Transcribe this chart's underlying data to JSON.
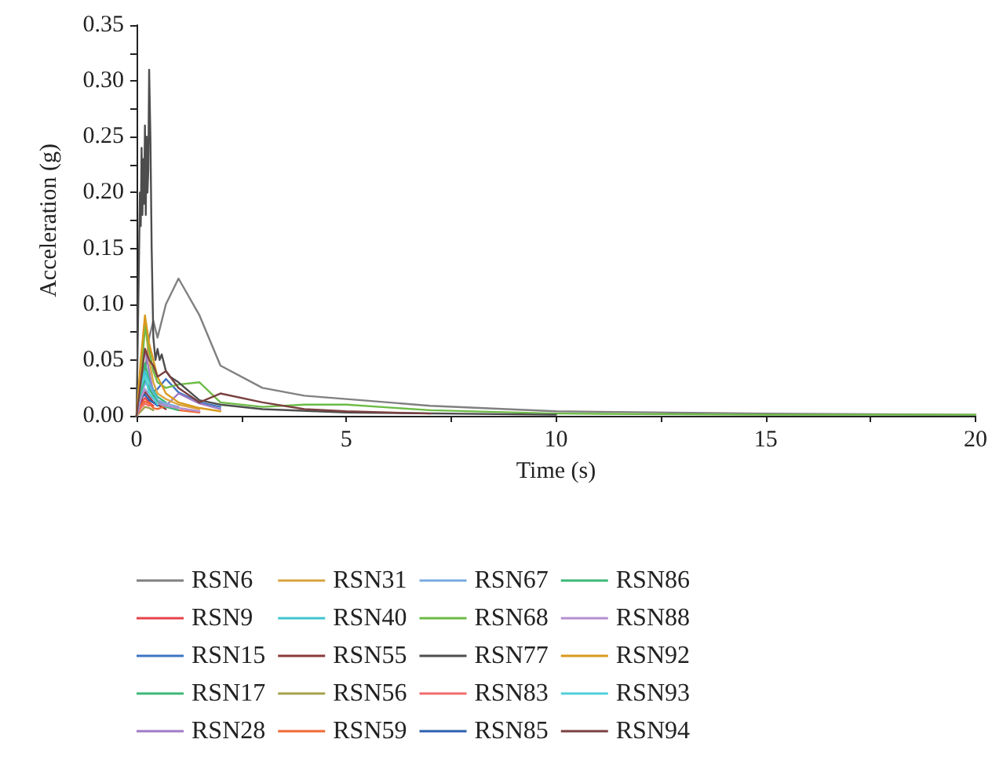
{
  "chart_data": {
    "type": "line",
    "xlabel": "Time (s)",
    "ylabel": "Acceleration (g)",
    "x": [
      0,
      0.1,
      0.2,
      0.3,
      0.4,
      0.5,
      0.7,
      1,
      1.5,
      2,
      3,
      4,
      5,
      7,
      10,
      15,
      20
    ],
    "xlim": [
      0,
      20
    ],
    "xticks": [
      0,
      {
        "value": 2.5,
        "label": null
      },
      5,
      {
        "value": 7.5,
        "label": null
      },
      10,
      {
        "value": 12.5,
        "label": null
      },
      15,
      {
        "value": 17.5,
        "label": null
      },
      20
    ],
    "ylim": [
      0,
      0.35
    ],
    "yticks": [
      {
        "value": 0,
        "label": "0.00"
      },
      {
        "value": 0.025,
        "label": null
      },
      {
        "value": 0.05,
        "label": "0.05"
      },
      {
        "value": 0.075,
        "label": null
      },
      {
        "value": 0.1,
        "label": "0.10"
      },
      {
        "value": 0.125,
        "label": null
      },
      {
        "value": 0.15,
        "label": "0.15"
      },
      {
        "value": 0.175,
        "label": null
      },
      {
        "value": 0.2,
        "label": "0.20"
      },
      {
        "value": 0.225,
        "label": null
      },
      {
        "value": 0.25,
        "label": "0.25"
      },
      {
        "value": 0.275,
        "label": null
      },
      {
        "value": 0.3,
        "label": "0.30"
      },
      {
        "value": 0.325,
        "label": null
      },
      {
        "value": 0.35,
        "label": "0.35"
      }
    ],
    "grid": false,
    "legend": "bottom",
    "marker": "none",
    "line_style": "solid",
    "series": [
      {
        "name": "RSN6",
        "color": "#808080",
        "values": [
          0,
          0.01,
          0.04,
          0.07,
          0.085,
          0.07,
          0.1,
          0.123,
          0.09,
          0.045,
          0.025,
          0.018,
          0.015,
          0.009,
          0.004,
          0.002,
          0.001
        ]
      },
      {
        "name": "RSN9",
        "color": "#e8424b",
        "values": [
          0,
          0.011,
          0.016,
          0.012,
          0.009,
          null,
          null,
          null,
          null,
          null,
          null,
          null,
          null,
          null,
          null,
          null,
          null
        ]
      },
      {
        "name": "RSN15",
        "color": "#3f74c4",
        "values": [
          0,
          0.02,
          0.031,
          0.026,
          0.022,
          0.024,
          0.033,
          0.021,
          0.012,
          0.008,
          null,
          null,
          null,
          null,
          null,
          null,
          null
        ]
      },
      {
        "name": "RSN17",
        "color": "#3cb878",
        "values": [
          0,
          0.024,
          0.047,
          0.033,
          0.023,
          0.017,
          0.012,
          null,
          null,
          null,
          null,
          null,
          null,
          null,
          null,
          null,
          null
        ]
      },
      {
        "name": "RSN28",
        "color": "#a07cc5",
        "values": [
          0,
          0.032,
          0.06,
          0.04,
          0.02,
          0.013,
          0.009,
          0.02,
          0.011,
          0.006,
          null,
          null,
          null,
          null,
          null,
          null,
          null
        ]
      },
      {
        "name": "RSN31",
        "color": "#d9a440",
        "values": [
          0,
          0.04,
          0.085,
          0.05,
          0.03,
          0.02,
          0.015,
          0.01,
          0.006,
          null,
          null,
          null,
          null,
          null,
          null,
          null,
          null
        ]
      },
      {
        "name": "RSN40",
        "color": "#3ec4cf",
        "values": [
          0,
          0.028,
          0.04,
          0.03,
          0.021,
          0.016,
          null,
          null,
          null,
          null,
          null,
          null,
          null,
          null,
          null,
          null,
          null
        ]
      },
      {
        "name": "RSN55",
        "color": "#8b3a3a",
        "values": [
          0,
          0.013,
          0.022,
          0.017,
          0.012,
          0.01,
          0.006,
          null,
          null,
          null,
          null,
          null,
          null,
          null,
          null,
          null,
          null
        ]
      },
      {
        "name": "RSN56",
        "color": "#a3a24a",
        "values": [
          0,
          0.004,
          0.008,
          0.007,
          0.005,
          null,
          null,
          null,
          null,
          null,
          null,
          null,
          null,
          null,
          null,
          null,
          null
        ]
      },
      {
        "name": "RSN59",
        "color": "#f06a32",
        "values": [
          0,
          0.009,
          0.013,
          0.011,
          0.007,
          0.006,
          0.009,
          0.005,
          0.003,
          null,
          null,
          null,
          null,
          null,
          null,
          null,
          null
        ]
      },
      {
        "name": "RSN67",
        "color": "#7aa9e0",
        "values": [
          0,
          0.018,
          0.029,
          0.027,
          0.019,
          0.014,
          0.011,
          0.008,
          null,
          null,
          null,
          null,
          null,
          null,
          null,
          null,
          null
        ]
      },
      {
        "name": "RSN68",
        "color": "#6cbb45",
        "values": [
          0,
          0.03,
          0.08,
          0.06,
          0.04,
          0.03,
          0.025,
          0.028,
          0.03,
          0.012,
          0.008,
          0.01,
          0.01,
          0.005,
          0.002,
          0.001,
          0.001
        ]
      },
      {
        "name": "RSN77",
        "color": "#4d4d4d",
        "x": [
          0,
          0.05,
          0.08,
          0.1,
          0.12,
          0.14,
          0.16,
          0.18,
          0.2,
          0.22,
          0.24,
          0.26,
          0.28,
          0.3,
          0.33,
          0.36,
          0.4,
          0.45,
          0.5,
          0.55,
          0.6,
          0.7,
          0.8,
          1,
          1.5,
          2,
          3,
          5,
          10
        ],
        "values": [
          0,
          0.12,
          0.2,
          0.17,
          0.24,
          0.18,
          0.23,
          0.19,
          0.26,
          0.18,
          0.25,
          0.2,
          0.22,
          0.31,
          0.25,
          0.15,
          0.07,
          0.05,
          0.06,
          0.05,
          0.055,
          0.04,
          0.035,
          0.03,
          0.014,
          0.01,
          0.006,
          0.003,
          0.001
        ]
      },
      {
        "name": "RSN83",
        "color": "#f06b6b",
        "values": [
          0,
          0.007,
          0.011,
          0.009,
          null,
          null,
          null,
          null,
          null,
          null,
          null,
          null,
          null,
          null,
          null,
          null,
          null
        ]
      },
      {
        "name": "RSN85",
        "color": "#2d5fb0",
        "values": [
          0,
          0.016,
          0.019,
          0.014,
          0.012,
          0.009,
          null,
          null,
          null,
          null,
          null,
          null,
          null,
          null,
          null,
          null,
          null
        ]
      },
      {
        "name": "RSN86",
        "color": "#3cb878",
        "values": [
          0,
          0.021,
          0.034,
          0.024,
          0.018,
          0.012,
          0.008,
          0.005,
          null,
          null,
          null,
          null,
          null,
          null,
          null,
          null,
          null
        ]
      },
      {
        "name": "RSN88",
        "color": "#b48fd0",
        "values": [
          0,
          0.015,
          0.024,
          0.019,
          0.015,
          0.011,
          0.009,
          0.007,
          0.004,
          null,
          null,
          null,
          null,
          null,
          null,
          null,
          null
        ]
      },
      {
        "name": "RSN92",
        "color": "#d99a1e",
        "values": [
          0,
          0.05,
          0.09,
          0.065,
          0.05,
          0.035,
          0.02,
          0.012,
          0.007,
          0.004,
          null,
          null,
          null,
          null,
          null,
          null,
          null
        ]
      },
      {
        "name": "RSN93",
        "color": "#4fd0d8",
        "values": [
          0,
          0.026,
          0.036,
          0.02,
          0.016,
          0.01,
          null,
          null,
          null,
          null,
          null,
          null,
          null,
          null,
          null,
          null,
          null
        ]
      },
      {
        "name": "RSN94",
        "color": "#7a4040",
        "values": [
          0,
          0.03,
          0.06,
          0.05,
          0.045,
          0.035,
          0.04,
          0.025,
          0.012,
          0.02,
          0.012,
          0.006,
          0.004,
          0.002,
          null,
          null,
          null
        ]
      }
    ]
  }
}
